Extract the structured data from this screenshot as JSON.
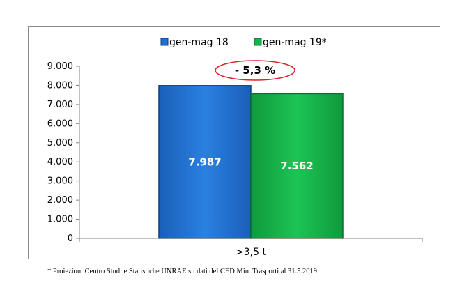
{
  "chart_data": {
    "type": "bar",
    "categories": [
      ">3,5 t"
    ],
    "series": [
      {
        "name": "gen-mag 18",
        "values": [
          7987
        ],
        "label": "7.987",
        "color": "#1f6fd0"
      },
      {
        "name": "gen-mag 19*",
        "values": [
          7562
        ],
        "label": "7.562",
        "color": "#16b24a"
      }
    ],
    "ylim": [
      0,
      9000
    ],
    "yticks": [
      0,
      1000,
      2000,
      3000,
      4000,
      5000,
      6000,
      7000,
      8000,
      9000
    ],
    "ytick_labels": [
      "0",
      "1.000",
      "2.000",
      "3.000",
      "4.000",
      "5.000",
      "6.000",
      "7.000",
      "8.000",
      "9.000"
    ],
    "annotation": "- 5,3 %",
    "annotation_color": "#e0202a",
    "legend_position": "top-center",
    "grid": false
  },
  "footnote": "* Proiezioni Centro Studi e Statistiche UNRAE su dati del CED Min. Trasporti al 31.5.2019"
}
